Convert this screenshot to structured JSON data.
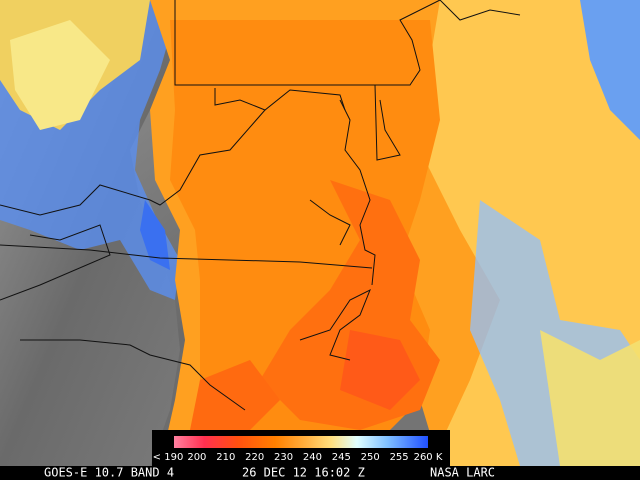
{
  "legend": {
    "labels": [
      "< 190",
      "200",
      "210",
      "220",
      "230",
      "240",
      "245",
      "250",
      "255",
      "260 K"
    ]
  },
  "footer": {
    "satellite": "GOES-E 10.7 BAND 4",
    "timestamp": "26 DEC 12 16:02 Z",
    "source": "NASA LARC"
  }
}
